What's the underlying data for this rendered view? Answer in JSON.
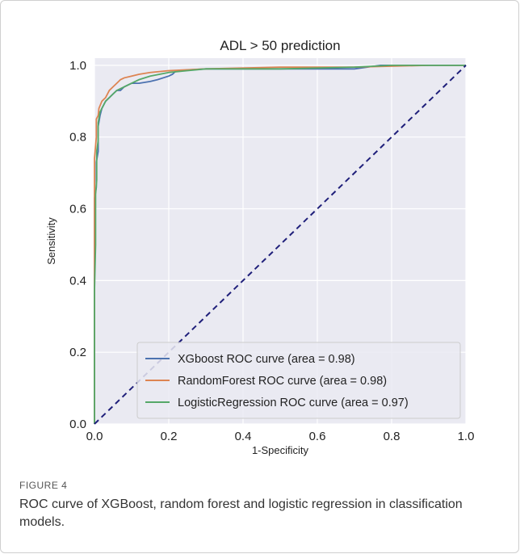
{
  "figure": {
    "label": "FIGURE 4",
    "caption": "ROC curve of XGBoost, random forest and logistic regression in classification models."
  },
  "chart_data": {
    "type": "line",
    "title": "ADL > 50 prediction",
    "xlabel": "1-Specificity",
    "ylabel": "Sensitivity",
    "xlim": [
      0.0,
      1.0
    ],
    "ylim": [
      0.0,
      1.02
    ],
    "xticks": [
      "0.0",
      "0.2",
      "0.4",
      "0.6",
      "0.8",
      "1.0"
    ],
    "yticks": [
      "0.0",
      "0.2",
      "0.4",
      "0.6",
      "0.8",
      "1.0"
    ],
    "grid": true,
    "legend_position": "bottom-right",
    "background_color": "#eaeaf2",
    "series": [
      {
        "name": "XGboost ROC curve (area = 0.98)",
        "color": "#4c72b0",
        "x": [
          0.0,
          0.0,
          0.005,
          0.005,
          0.01,
          0.01,
          0.015,
          0.02,
          0.025,
          0.03,
          0.04,
          0.05,
          0.06,
          0.07,
          0.08,
          0.1,
          0.12,
          0.15,
          0.17,
          0.2,
          0.21,
          0.22,
          0.3,
          0.5,
          0.7,
          0.77,
          0.8,
          1.0
        ],
        "y": [
          0.0,
          0.63,
          0.66,
          0.73,
          0.76,
          0.83,
          0.86,
          0.88,
          0.89,
          0.9,
          0.91,
          0.92,
          0.93,
          0.93,
          0.94,
          0.95,
          0.95,
          0.955,
          0.96,
          0.97,
          0.975,
          0.985,
          0.99,
          0.99,
          0.99,
          1.0,
          1.0,
          1.0
        ]
      },
      {
        "name": "RandomForest ROC curve (area = 0.98)",
        "color": "#dd8452",
        "x": [
          0.0,
          0.0,
          0.005,
          0.005,
          0.01,
          0.012,
          0.02,
          0.03,
          0.04,
          0.05,
          0.06,
          0.07,
          0.08,
          0.1,
          0.12,
          0.15,
          0.2,
          0.3,
          0.5,
          0.7,
          0.9,
          1.0
        ],
        "y": [
          0.0,
          0.74,
          0.8,
          0.85,
          0.86,
          0.88,
          0.9,
          0.91,
          0.93,
          0.94,
          0.95,
          0.96,
          0.965,
          0.97,
          0.975,
          0.98,
          0.985,
          0.99,
          0.995,
          0.995,
          1.0,
          1.0
        ]
      },
      {
        "name": "LogisticRegression ROC curve (area = 0.97)",
        "color": "#55a868",
        "x": [
          0.0,
          0.0,
          0.003,
          0.003,
          0.006,
          0.006,
          0.01,
          0.01,
          0.015,
          0.02,
          0.03,
          0.04,
          0.05,
          0.06,
          0.08,
          0.1,
          0.12,
          0.15,
          0.2,
          0.25,
          0.3,
          0.5,
          0.7,
          0.8,
          1.0
        ],
        "y": [
          0.0,
          0.37,
          0.5,
          0.64,
          0.68,
          0.76,
          0.79,
          0.84,
          0.87,
          0.88,
          0.9,
          0.91,
          0.92,
          0.93,
          0.94,
          0.95,
          0.96,
          0.97,
          0.98,
          0.985,
          0.99,
          0.99,
          0.995,
          1.0,
          1.0
        ]
      }
    ],
    "reference_line": {
      "x": [
        0.0,
        1.0
      ],
      "y": [
        0.0,
        1.0
      ],
      "color": "#1f1f7a",
      "dashed": true
    }
  }
}
